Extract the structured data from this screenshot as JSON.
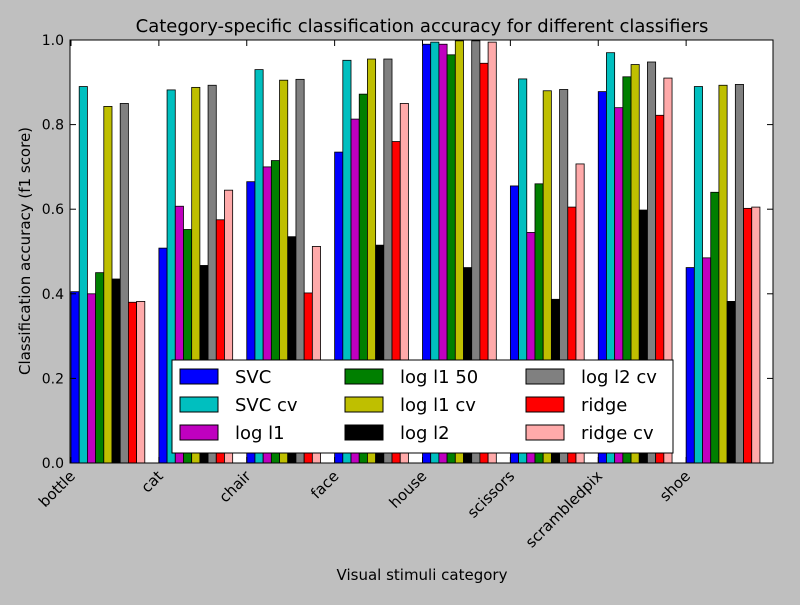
{
  "chart_data": {
    "type": "bar",
    "title": "Category-specific classification accuracy for different classifiers",
    "xlabel": "Visual stimuli category",
    "ylabel": "Classification accuracy (f1 score)",
    "ylim": [
      0,
      1
    ],
    "yticks": [
      "0.0",
      "0.2",
      "0.4",
      "0.6",
      "0.8",
      "1.0"
    ],
    "grid": false,
    "legend_position": "lower center, inside axes, 3 columns",
    "categories": [
      "bottle",
      "cat",
      "chair",
      "face",
      "house",
      "scissors",
      "scrambledpix",
      "shoe"
    ],
    "series": [
      {
        "name": "SVC",
        "color": "#0000ff",
        "values": [
          0.405,
          0.508,
          0.665,
          0.735,
          0.99,
          0.655,
          0.878,
          0.462
        ]
      },
      {
        "name": "SVC cv",
        "color": "#00bfbf",
        "values": [
          0.89,
          0.882,
          0.93,
          0.952,
          0.995,
          0.908,
          0.97,
          0.89
        ]
      },
      {
        "name": "log l1",
        "color": "#bf00bf",
        "values": [
          0.4,
          0.607,
          0.7,
          0.813,
          0.99,
          0.545,
          0.84,
          0.485
        ]
      },
      {
        "name": "log l1 50",
        "color": "#007f00",
        "values": [
          0.45,
          0.552,
          0.715,
          0.872,
          0.965,
          0.66,
          0.913,
          0.64
        ]
      },
      {
        "name": "log l1 cv",
        "color": "#bfbf00",
        "values": [
          0.843,
          0.888,
          0.905,
          0.955,
          0.998,
          0.88,
          0.942,
          0.893
        ]
      },
      {
        "name": "log l2",
        "color": "#000000",
        "values": [
          0.435,
          0.467,
          0.535,
          0.515,
          0.462,
          0.387,
          0.598,
          0.382
        ]
      },
      {
        "name": "log l2 cv",
        "color": "#808080",
        "values": [
          0.85,
          0.893,
          0.907,
          0.955,
          0.998,
          0.883,
          0.948,
          0.895
        ]
      },
      {
        "name": "ridge",
        "color": "#ff0000",
        "values": [
          0.38,
          0.575,
          0.402,
          0.76,
          0.945,
          0.605,
          0.822,
          0.602
        ]
      },
      {
        "name": "ridge cv",
        "color": "#ffaaaa",
        "values": [
          0.382,
          0.645,
          0.512,
          0.85,
          0.995,
          0.707,
          0.91,
          0.605
        ]
      }
    ]
  }
}
